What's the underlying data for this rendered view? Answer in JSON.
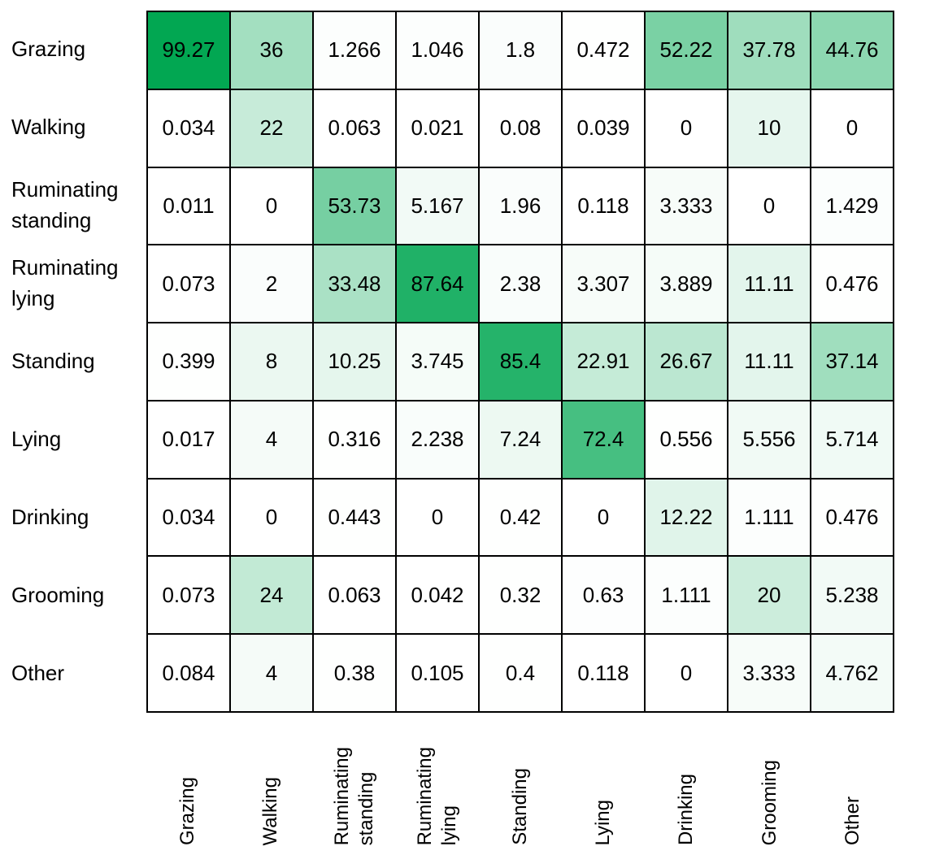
{
  "chart_data": {
    "type": "heatmap",
    "title": "",
    "xlabel": "",
    "ylabel": "",
    "categories": [
      "Grazing",
      "Walking",
      "Ruminating standing",
      "Ruminating lying",
      "Standing",
      "Lying",
      "Drinking",
      "Grooming",
      "Other"
    ],
    "categories_lines": [
      [
        "Grazing"
      ],
      [
        "Walking"
      ],
      [
        "Ruminating",
        "standing"
      ],
      [
        "Ruminating",
        "lying"
      ],
      [
        "Standing"
      ],
      [
        "Lying"
      ],
      [
        "Drinking"
      ],
      [
        "Grooming"
      ],
      [
        "Other"
      ]
    ],
    "rows": [
      "Grazing",
      "Walking",
      "Ruminating standing",
      "Ruminating lying",
      "Standing",
      "Lying",
      "Drinking",
      "Grooming",
      "Other"
    ],
    "columns": [
      "Grazing",
      "Walking",
      "Ruminating standing",
      "Ruminating lying",
      "Standing",
      "Lying",
      "Drinking",
      "Grooming",
      "Other"
    ],
    "values": [
      [
        "99.27",
        "36",
        "1.266",
        "1.046",
        "1.8",
        "0.472",
        "52.22",
        "37.78",
        "44.76"
      ],
      [
        "0.034",
        "22",
        "0.063",
        "0.021",
        "0.08",
        "0.039",
        "0",
        "10",
        "0"
      ],
      [
        "0.011",
        "0",
        "53.73",
        "5.167",
        "1.96",
        "0.118",
        "3.333",
        "0",
        "1.429"
      ],
      [
        "0.073",
        "2",
        "33.48",
        "87.64",
        "2.38",
        "3.307",
        "3.889",
        "11.11",
        "0.476"
      ],
      [
        "0.399",
        "8",
        "10.25",
        "3.745",
        "85.4",
        "22.91",
        "26.67",
        "11.11",
        "37.14"
      ],
      [
        "0.017",
        "4",
        "0.316",
        "2.238",
        "7.24",
        "72.4",
        "0.556",
        "5.556",
        "5.714"
      ],
      [
        "0.034",
        "0",
        "0.443",
        "0",
        "0.42",
        "0",
        "12.22",
        "1.111",
        "0.476"
      ],
      [
        "0.073",
        "24",
        "0.063",
        "0.042",
        "0.32",
        "0.63",
        "1.111",
        "20",
        "5.238"
      ],
      [
        "0.084",
        "4",
        "0.38",
        "0.105",
        "0.4",
        "0.118",
        "0",
        "3.333",
        "4.762"
      ]
    ],
    "scale": [
      0,
      100
    ],
    "colors": {
      "low": "#ffffff",
      "high": "#00a651",
      "grid_line": "#000000",
      "text": "#000000"
    },
    "legend": "none",
    "grid": "on"
  }
}
